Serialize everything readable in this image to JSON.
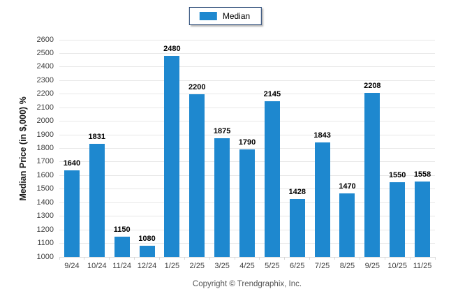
{
  "chart_data": {
    "type": "bar",
    "title": "",
    "xlabel": "",
    "ylabel": "Median Price (in $,000) %",
    "categories": [
      "9/24",
      "10/24",
      "11/24",
      "12/24",
      "1/25",
      "2/25",
      "3/25",
      "4/25",
      "5/25",
      "6/25",
      "7/25",
      "8/25",
      "9/25",
      "10/25",
      "11/25"
    ],
    "series": [
      {
        "name": "Median",
        "values": [
          1640,
          1831,
          1150,
          1080,
          2480,
          2200,
          1875,
          1790,
          2145,
          1428,
          1843,
          1470,
          2208,
          1550,
          1558
        ]
      }
    ],
    "ylim": [
      1000,
      2600
    ],
    "ytick_step": 100,
    "grid": "horizontal",
    "legend_position": "top-center",
    "value_labels": "above-bars"
  },
  "footer": {
    "text": "Copyright © Trendgraphix, Inc."
  },
  "colors": {
    "bar": "#1e88cf",
    "grid": "#e7e7e7",
    "baseline": "#dcdcdc",
    "tick_mark": "#d9d9d9",
    "legend_border": "#1c3e6e",
    "axis_text": "#404040",
    "value_label": "#000000",
    "footer_text": "#555555"
  }
}
